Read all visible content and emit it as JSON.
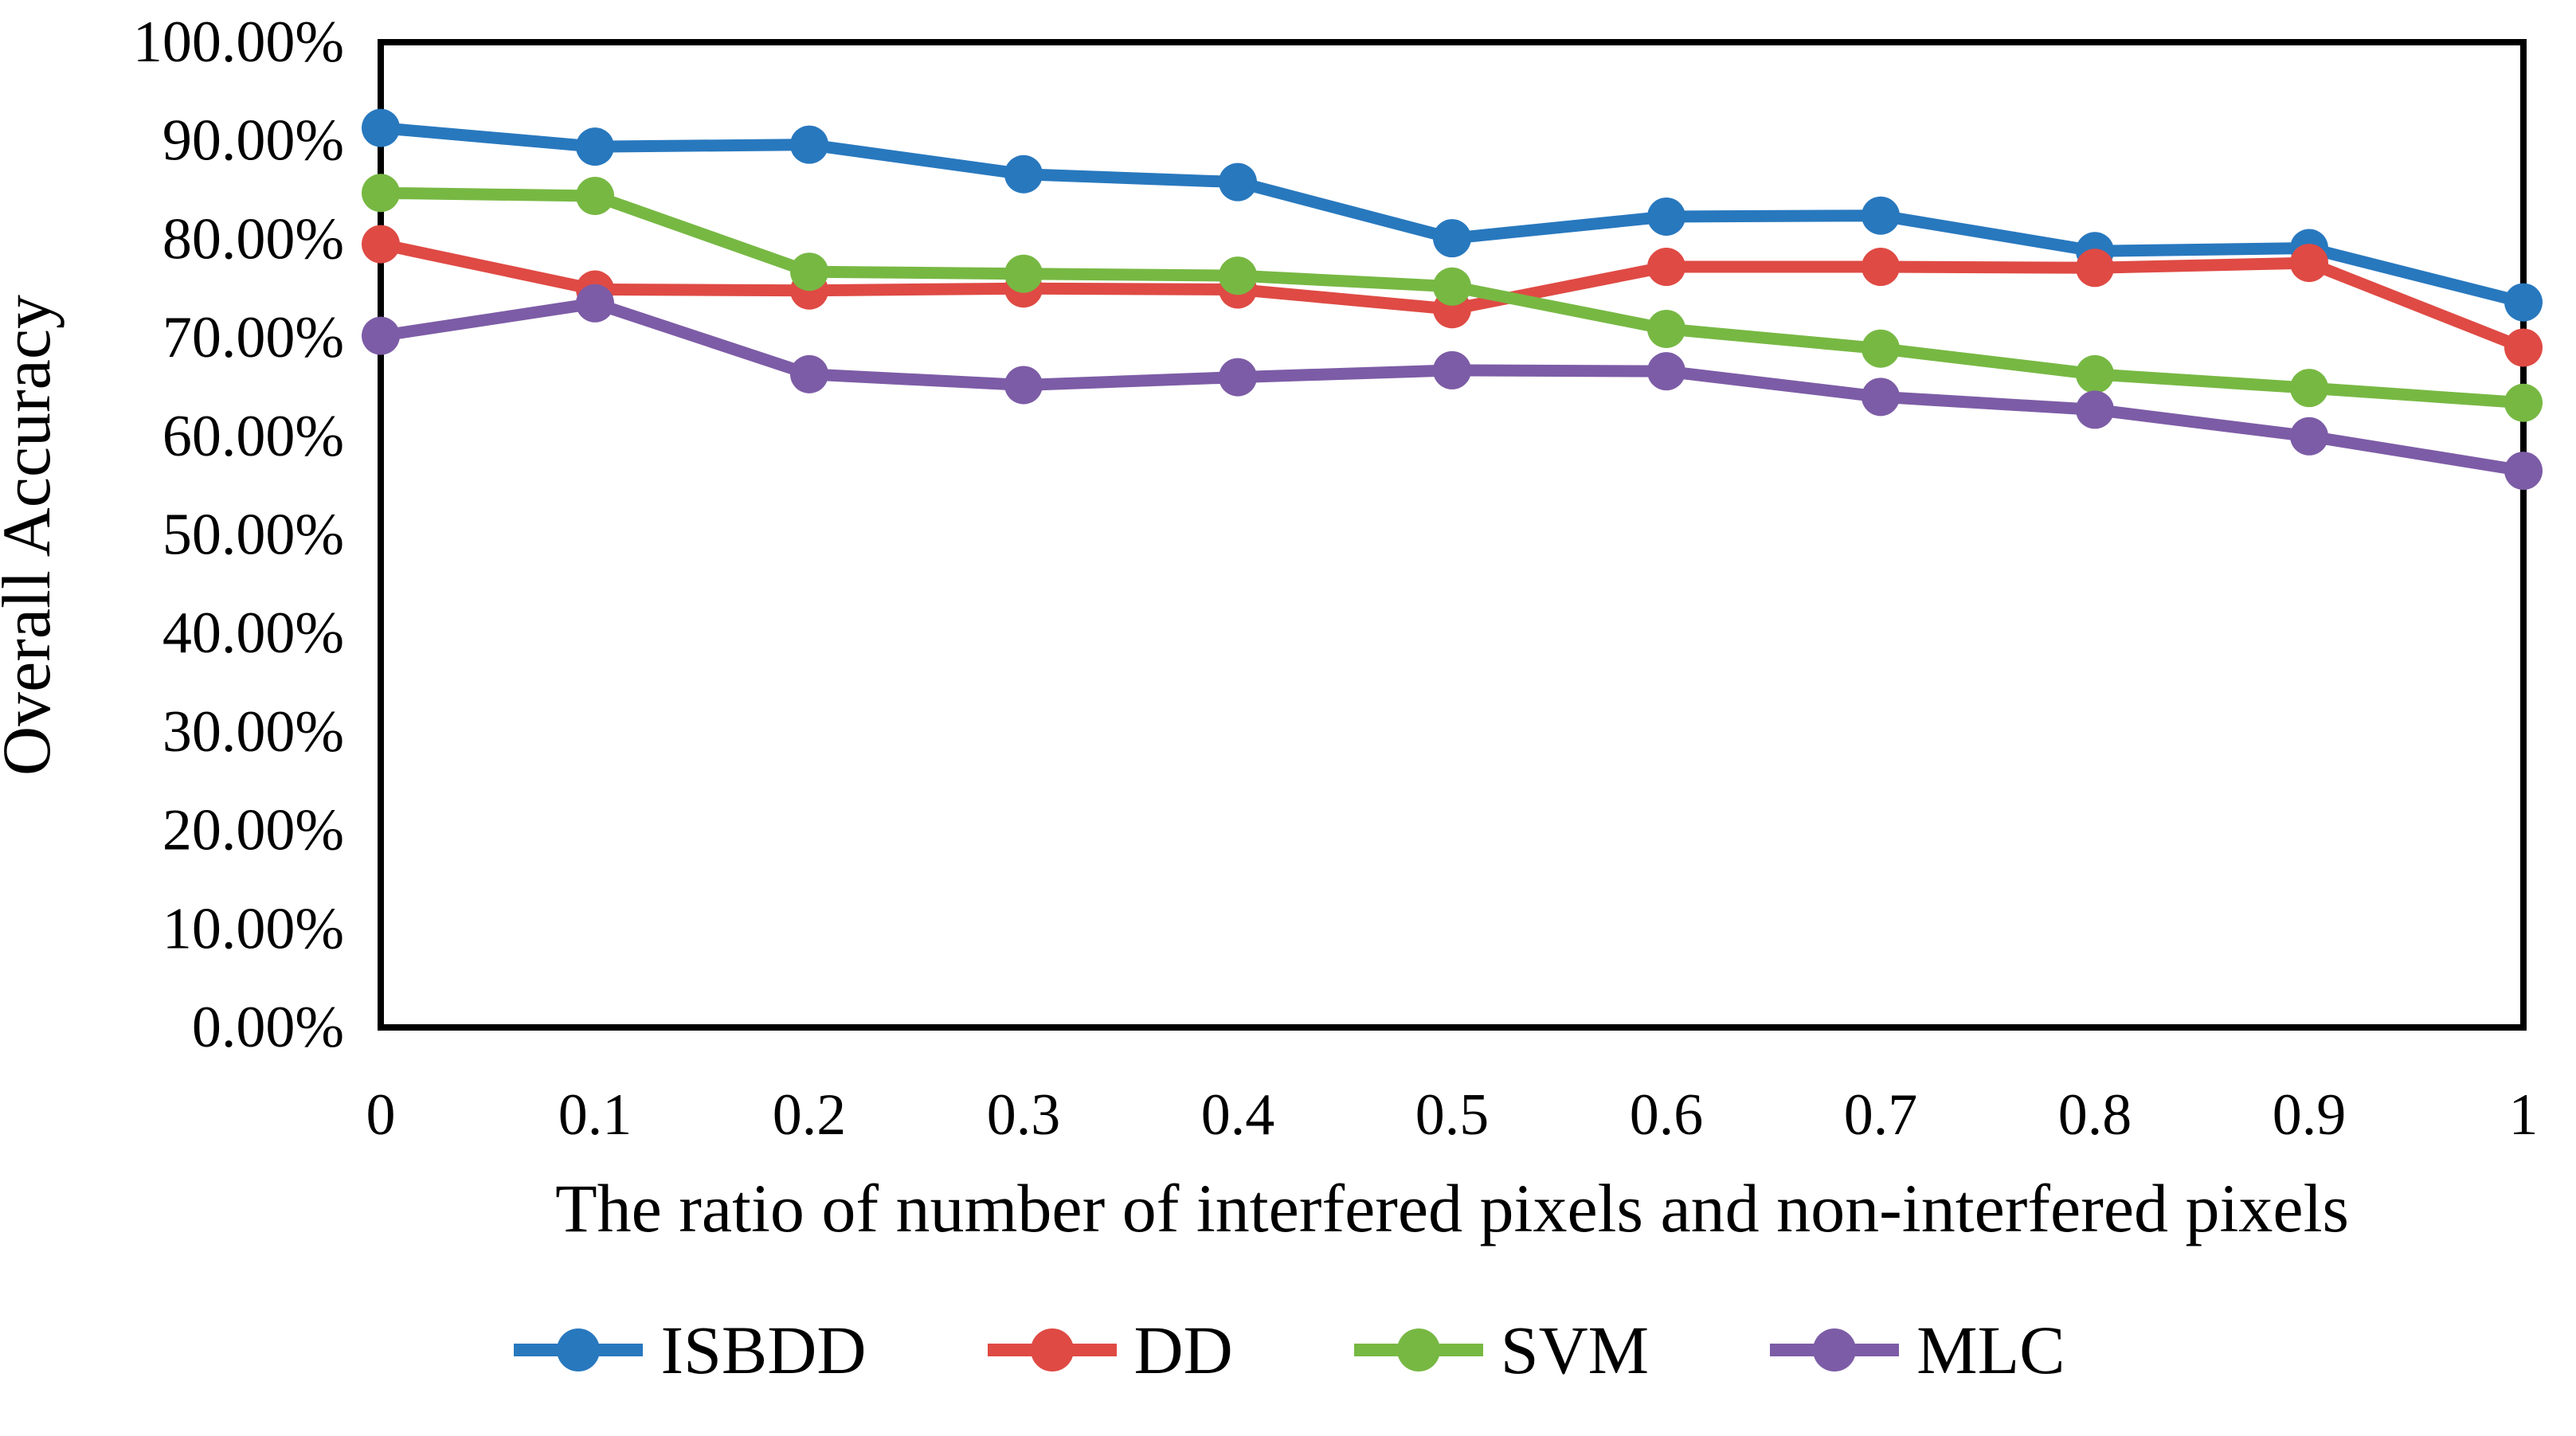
{
  "figure": {
    "background": "#ffffff",
    "text_color": "#000000",
    "axis_color": "#000000"
  },
  "chart_data": {
    "type": "line",
    "title": "",
    "xlabel": "The ratio of number of interfered pixels and non-interfered pixels",
    "ylabel": "Overall Accuracy",
    "x": [
      0,
      0.1,
      0.2,
      0.3,
      0.4,
      0.5,
      0.6,
      0.7,
      0.8,
      0.9,
      1
    ],
    "xticks": [
      "0",
      "0.1",
      "0.2",
      "0.3",
      "0.4",
      "0.5",
      "0.6",
      "0.7",
      "0.8",
      "0.9",
      "1"
    ],
    "ylim": [
      0,
      100
    ],
    "ytick_step": 10,
    "yticks": [
      "0.00%",
      "10.00%",
      "20.00%",
      "30.00%",
      "40.00%",
      "50.00%",
      "60.00%",
      "70.00%",
      "80.00%",
      "90.00%",
      "100.00%"
    ],
    "grid": false,
    "legend_position": "bottom",
    "marker": "circle",
    "series": [
      {
        "name": "ISBDD",
        "color": "#2878BE",
        "values": [
          91.3,
          89.4,
          89.6,
          86.6,
          85.8,
          80.1,
          82.3,
          82.4,
          78.8,
          79.1,
          73.6
        ]
      },
      {
        "name": "DD",
        "color": "#DF4A44",
        "values": [
          79.5,
          74.9,
          74.8,
          75.0,
          74.9,
          72.9,
          77.2,
          77.2,
          77.1,
          77.6,
          69.0
        ]
      },
      {
        "name": "SVM",
        "color": "#77B843",
        "values": [
          84.7,
          84.4,
          76.7,
          76.5,
          76.3,
          75.2,
          70.9,
          68.9,
          66.3,
          64.9,
          63.4
        ]
      },
      {
        "name": "MLC",
        "color": "#7C5CA6",
        "values": [
          70.2,
          73.5,
          66.3,
          65.2,
          66.0,
          66.7,
          66.6,
          64.0,
          62.7,
          60.0,
          56.5
        ]
      }
    ]
  }
}
